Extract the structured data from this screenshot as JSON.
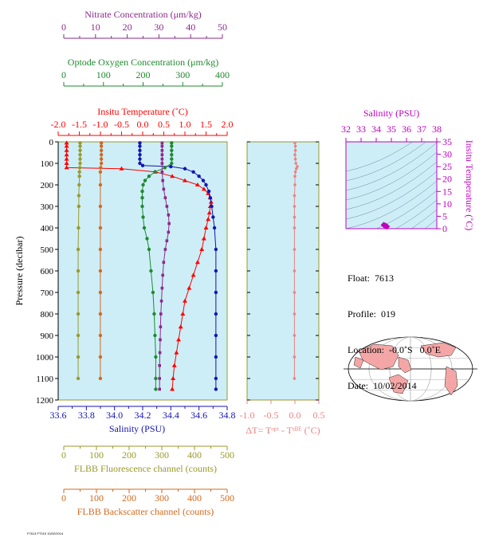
{
  "chart_data": [
    {
      "type": "line",
      "top_axes": [
        {
          "label": "Nitrate Concentration (μm/kg)",
          "color": "#8b2a8b",
          "range": [
            0,
            50
          ],
          "ticks": [
            "0",
            "10",
            "20",
            "30",
            "40",
            "50"
          ]
        },
        {
          "label": "Optode Oxygen Concentration (μm/kg)",
          "color": "#1f8a2e",
          "range": [
            0,
            400
          ],
          "ticks": [
            "0",
            "100",
            "200",
            "300",
            "400"
          ]
        },
        {
          "label": "Insitu Temperature (˚C)",
          "color": "#ff0000",
          "range": [
            -2.0,
            2.0
          ],
          "ticks": [
            "-2.0",
            "-1.5",
            "-1.0",
            "-0.5",
            "0.0",
            "0.5",
            "1.0",
            "1.5",
            "2.0"
          ]
        }
      ],
      "bottom_axes": [
        {
          "label": "Salinity (PSU)",
          "color": "#1414b4",
          "range": [
            33.6,
            34.8
          ],
          "ticks": [
            "33.6",
            "33.8",
            "34.0",
            "34.2",
            "34.4",
            "34.6",
            "34.8"
          ]
        },
        {
          "label": "FLBB Fluorescence channel (counts)",
          "color": "#9a9a2a",
          "range": [
            0,
            500
          ],
          "ticks": [
            "0",
            "100",
            "200",
            "300",
            "400",
            "500"
          ]
        },
        {
          "label": "FLBB Backscatter channel (counts)",
          "color": "#d2691e",
          "range": [
            0,
            500
          ],
          "ticks": [
            "0",
            "100",
            "200",
            "300",
            "400",
            "500"
          ]
        }
      ],
      "ylabel": "Pressure (decibar)",
      "ylim": [
        1200,
        0
      ],
      "y_ticks": [
        "0",
        "100",
        "200",
        "300",
        "400",
        "500",
        "600",
        "700",
        "800",
        "900",
        "1000",
        "1100",
        "1200"
      ],
      "series": [
        {
          "color": "#ff0000",
          "marker": "triangle",
          "x_axis": "temperature",
          "points": [
            [
              -1.8,
              5
            ],
            [
              -1.8,
              20
            ],
            [
              -1.8,
              40
            ],
            [
              -1.8,
              60
            ],
            [
              -1.8,
              80
            ],
            [
              -1.8,
              100
            ],
            [
              -1.8,
              120
            ],
            [
              -0.5,
              125
            ],
            [
              0.3,
              140
            ],
            [
              0.7,
              160
            ],
            [
              1.0,
              180
            ],
            [
              1.3,
              200
            ],
            [
              1.45,
              220
            ],
            [
              1.55,
              240
            ],
            [
              1.6,
              260
            ],
            [
              1.62,
              280
            ],
            [
              1.6,
              300
            ],
            [
              1.58,
              330
            ],
            [
              1.55,
              360
            ],
            [
              1.5,
              400
            ],
            [
              1.45,
              450
            ],
            [
              1.4,
              500
            ],
            [
              1.3,
              560
            ],
            [
              1.2,
              620
            ],
            [
              1.1,
              680
            ],
            [
              1.0,
              740
            ],
            [
              0.95,
              800
            ],
            [
              0.9,
              860
            ],
            [
              0.85,
              920
            ],
            [
              0.8,
              980
            ],
            [
              0.75,
              1040
            ],
            [
              0.72,
              1100
            ],
            [
              0.7,
              1150
            ]
          ]
        },
        {
          "color": "#1414b4",
          "marker": "circle",
          "x_axis": "salinity",
          "points": [
            [
              34.18,
              5
            ],
            [
              34.18,
              20
            ],
            [
              34.18,
              40
            ],
            [
              34.18,
              60
            ],
            [
              34.18,
              80
            ],
            [
              34.18,
              100
            ],
            [
              34.2,
              110
            ],
            [
              34.4,
              115
            ],
            [
              34.5,
              125
            ],
            [
              34.56,
              140
            ],
            [
              34.6,
              160
            ],
            [
              34.63,
              180
            ],
            [
              34.65,
              200
            ],
            [
              34.67,
              230
            ],
            [
              34.68,
              260
            ],
            [
              34.69,
              300
            ],
            [
              34.7,
              350
            ],
            [
              34.71,
              400
            ],
            [
              34.72,
              500
            ],
            [
              34.72,
              600
            ],
            [
              34.72,
              700
            ],
            [
              34.72,
              800
            ],
            [
              34.72,
              900
            ],
            [
              34.72,
              1000
            ],
            [
              34.72,
              1100
            ],
            [
              34.72,
              1150
            ]
          ]
        },
        {
          "color": "#1f8a2e",
          "marker": "circle",
          "x_axis": "oxygen",
          "points": [
            [
              272,
              5
            ],
            [
              272,
              20
            ],
            [
              272,
              40
            ],
            [
              272,
              60
            ],
            [
              272,
              80
            ],
            [
              272,
              100
            ],
            [
              255,
              120
            ],
            [
              230,
              140
            ],
            [
              215,
              160
            ],
            [
              205,
              180
            ],
            [
              200,
              200
            ],
            [
              198,
              230
            ],
            [
              198,
              260
            ],
            [
              198,
              300
            ],
            [
              200,
              350
            ],
            [
              203,
              400
            ],
            [
              210,
              450
            ],
            [
              215,
              500
            ],
            [
              220,
              600
            ],
            [
              225,
              700
            ],
            [
              228,
              800
            ],
            [
              230,
              900
            ],
            [
              232,
              1000
            ],
            [
              232,
              1100
            ],
            [
              232,
              1150
            ]
          ]
        },
        {
          "color": "#8b2a8b",
          "marker": "square",
          "x_axis": "nitrate",
          "points": [
            [
              31,
              5
            ],
            [
              31,
              20
            ],
            [
              31,
              40
            ],
            [
              31,
              60
            ],
            [
              31,
              80
            ],
            [
              31,
              100
            ],
            [
              31,
              140
            ],
            [
              31.2,
              180
            ],
            [
              31.5,
              220
            ],
            [
              32,
              260
            ],
            [
              32.5,
              300
            ],
            [
              33,
              340
            ],
            [
              33.2,
              380
            ],
            [
              33,
              420
            ],
            [
              32.5,
              460
            ],
            [
              32,
              500
            ],
            [
              31.5,
              560
            ],
            [
              31.2,
              620
            ],
            [
              31,
              680
            ],
            [
              30.8,
              740
            ],
            [
              30.6,
              800
            ],
            [
              30.5,
              860
            ],
            [
              30.4,
              920
            ],
            [
              30.3,
              980
            ],
            [
              30.2,
              1040
            ],
            [
              30.2,
              1100
            ],
            [
              30.2,
              1150
            ]
          ]
        },
        {
          "color": "#9a9a2a",
          "marker": "circle",
          "x_axis": "fluorescence",
          "points": [
            [
              50,
              5
            ],
            [
              50,
              20
            ],
            [
              50,
              40
            ],
            [
              50,
              60
            ],
            [
              50,
              80
            ],
            [
              50,
              100
            ],
            [
              49,
              120
            ],
            [
              48,
              140
            ],
            [
              48,
              160
            ],
            [
              47,
              200
            ],
            [
              46,
              250
            ],
            [
              46,
              300
            ],
            [
              45,
              400
            ],
            [
              44,
              500
            ],
            [
              44,
              600
            ],
            [
              44,
              700
            ],
            [
              44,
              800
            ],
            [
              44,
              900
            ],
            [
              44,
              1000
            ],
            [
              44,
              1100
            ]
          ]
        },
        {
          "color": "#d2691e",
          "marker": "circle",
          "x_axis": "backscatter",
          "points": [
            [
              115,
              5
            ],
            [
              115,
              20
            ],
            [
              115,
              40
            ],
            [
              115,
              60
            ],
            [
              115,
              80
            ],
            [
              115,
              100
            ],
            [
              113,
              120
            ],
            [
              112,
              140
            ],
            [
              112,
              200
            ],
            [
              112,
              300
            ],
            [
              112,
              400
            ],
            [
              112,
              500
            ],
            [
              112,
              600
            ],
            [
              112,
              700
            ],
            [
              112,
              800
            ],
            [
              112,
              900
            ],
            [
              112,
              1000
            ],
            [
              112,
              1100
            ]
          ]
        }
      ]
    },
    {
      "type": "line",
      "xlabel": "ΔT= Tᵒᵖᵗ - Tˢᴮᴱ (˚C)",
      "xlim": [
        -1.0,
        0.5
      ],
      "x_ticks": [
        "-1.0",
        "-0.5",
        "0.0",
        "0.5"
      ],
      "ylim": [
        1200,
        0
      ],
      "series": [
        {
          "color": "#f08080",
          "marker": "circle",
          "points": [
            [
              0.0,
              5
            ],
            [
              0.01,
              20
            ],
            [
              0.01,
              40
            ],
            [
              0.0,
              60
            ],
            [
              0.01,
              80
            ],
            [
              0.02,
              100
            ],
            [
              0.05,
              115
            ],
            [
              0.03,
              125
            ],
            [
              0.01,
              140
            ],
            [
              0.0,
              160
            ],
            [
              0.0,
              200
            ],
            [
              -0.01,
              250
            ],
            [
              -0.01,
              300
            ],
            [
              -0.01,
              350
            ],
            [
              -0.01,
              400
            ],
            [
              -0.01,
              500
            ],
            [
              -0.01,
              600
            ],
            [
              -0.01,
              700
            ],
            [
              -0.01,
              800
            ],
            [
              -0.01,
              900
            ],
            [
              -0.01,
              1000
            ],
            [
              -0.01,
              1100
            ]
          ]
        }
      ]
    },
    {
      "type": "scatter",
      "title": "Salinity (PSU)",
      "xlim": [
        32,
        38
      ],
      "x_ticks": [
        "32",
        "33",
        "34",
        "35",
        "36",
        "37",
        "38"
      ],
      "ylabel": "Insitu Temperature (˚C)",
      "ylim": [
        0,
        35
      ],
      "y_ticks": [
        "0",
        "5",
        "10",
        "15",
        "20",
        "25",
        "30",
        "35"
      ],
      "points": [
        [
          34.7,
          0.9
        ],
        [
          34.6,
          1.2
        ],
        [
          34.5,
          1.5
        ]
      ]
    }
  ],
  "info": {
    "float": "Float:  7613",
    "profile": "Profile:  019",
    "location": "Location:  -0.0˚S   0.0˚E",
    "date": "Date:  10/02/2014"
  },
  "footer_text": "F7613 FT019 10/02/2014"
}
